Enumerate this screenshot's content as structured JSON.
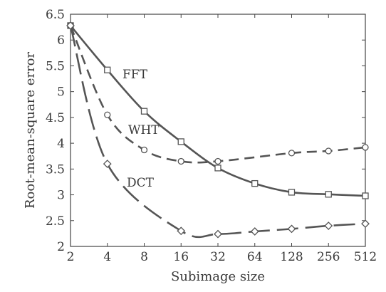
{
  "chart_data": {
    "type": "line",
    "xlabel": "Subimage size",
    "ylabel": "Root-mean-square error",
    "categories": [
      "2",
      "4",
      "8",
      "16",
      "32",
      "64",
      "128",
      "256",
      "512"
    ],
    "ylim": [
      2,
      6.5
    ],
    "yticks": [
      "2",
      "2.5",
      "3",
      "3.5",
      "4",
      "4.5",
      "5",
      "5.5",
      "6",
      "6.5"
    ],
    "grid": false,
    "series": [
      {
        "name": "FFT",
        "values": [
          6.28,
          5.42,
          4.62,
          4.03,
          3.52,
          3.22,
          3.05,
          3.01,
          2.98
        ],
        "marker": "square",
        "dash": "solid",
        "color": "#555555"
      },
      {
        "name": "WHT",
        "values": [
          6.28,
          4.55,
          3.87,
          3.65,
          3.65,
          null,
          3.81,
          3.85,
          3.92
        ],
        "marker": "circle",
        "dash": "dashed",
        "color": "#555555"
      },
      {
        "name": "DCT",
        "values": [
          6.28,
          3.6,
          null,
          2.3,
          2.24,
          2.29,
          2.34,
          2.4,
          2.44
        ],
        "marker": "diamond",
        "dash": "longdash",
        "color": "#555555"
      }
    ]
  }
}
